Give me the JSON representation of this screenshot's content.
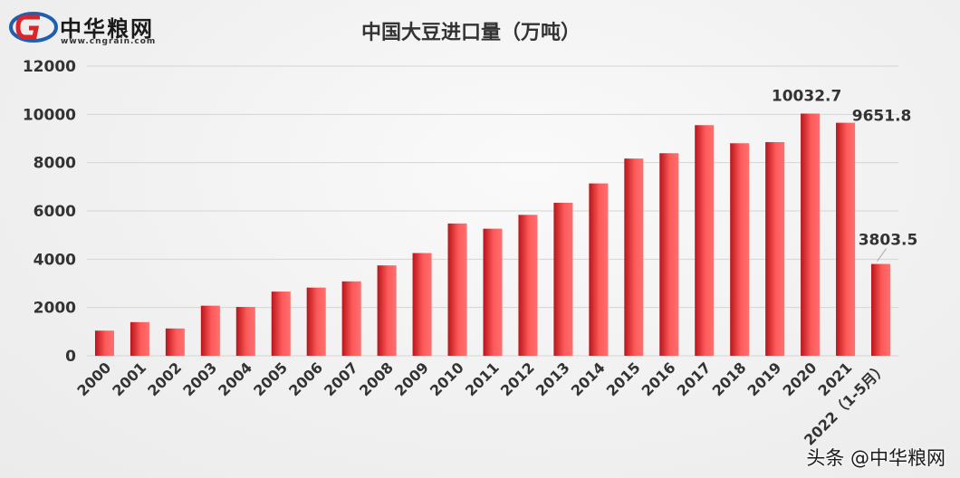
{
  "logo": {
    "name": "中华粮网",
    "url": "www.cngrain.com"
  },
  "watermark": "头条 @中华粮网",
  "colors": {
    "bar_dark": "#b8151b",
    "bar_light": "#ff5a5a",
    "grid": "#d4d4d4",
    "text": "#333333"
  },
  "chart_data": {
    "type": "bar",
    "title": "中国大豆进口量（万吨）",
    "xlabel": "",
    "ylabel": "",
    "ylim": [
      0,
      12000
    ],
    "yticks": [
      0,
      2000,
      4000,
      6000,
      8000,
      10000,
      12000
    ],
    "grid": true,
    "categories": [
      "2000",
      "2001",
      "2002",
      "2003",
      "2004",
      "2005",
      "2006",
      "2007",
      "2008",
      "2009",
      "2010",
      "2011",
      "2012",
      "2013",
      "2014",
      "2015",
      "2016",
      "2017",
      "2018",
      "2019",
      "2020",
      "2021",
      "2022（1-5月）"
    ],
    "values": [
      1042,
      1394,
      1131,
      2074,
      2023,
      2659,
      2824,
      3082,
      3744,
      4255,
      5480,
      5264,
      5838,
      6338,
      7140,
      8169,
      8391,
      9553,
      8803,
      8851,
      10032.7,
      9651.8,
      3803.5
    ],
    "data_labels": [
      {
        "index": 20,
        "text": "10032.7"
      },
      {
        "index": 21,
        "text": "9651.8"
      },
      {
        "index": 22,
        "text": "3803.5"
      }
    ]
  }
}
